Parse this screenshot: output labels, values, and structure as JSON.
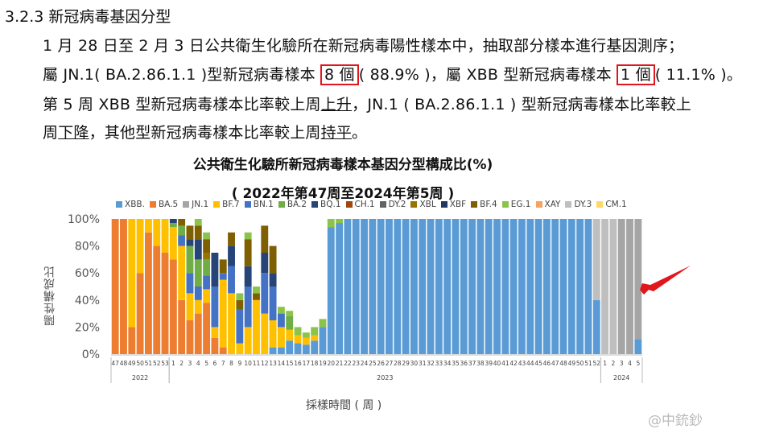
{
  "doc": {
    "heading": "3.2.3 新冠病毒基因分型",
    "line1": "1 月 28 日至 2 月 3 日公共衛生化驗所在新冠病毒陽性樣本中，抽取部分樣本進行基因測序；",
    "line2_a": "屬 JN.1( BA.2.86.1.1 )型新冠病毒樣本 ",
    "line2_b": "8 個",
    "line2_c": "( 88.9% )，屬 XBB 型新冠病毒樣本 ",
    "line2_d": "1 個",
    "line2_e": "( 11.1% )。",
    "line3_a": "第 5 周 XBB 型新冠病毒樣本比率較上周",
    "line3_b": "上升",
    "line3_c": "，JN.1 ( BA.2.86.1.1 ) 型新冠病毒樣本比率較上",
    "line4_a": "周",
    "line4_b": "下降",
    "line4_c": "，其他型新冠病毒樣本比率較上周",
    "line4_d": "持平",
    "line4_e": "。"
  },
  "chart_data": {
    "type": "bar",
    "stacked": true,
    "title": "公共衛生化驗所新冠病毒樣本基因分型構成比(%)",
    "subtitle": "( 2022年第47周至2024年第5周 )",
    "xlabel": "採樣時間 ( 周 )",
    "ylabel": "陽性構成比",
    "ylim": [
      0,
      100
    ],
    "yticks": [
      "0%",
      "20%",
      "40%",
      "60%",
      "80%",
      "100%"
    ],
    "legend_position": "top",
    "categories": [
      "47",
      "48",
      "49",
      "50",
      "51",
      "52",
      "53",
      "1",
      "2",
      "3",
      "4",
      "5",
      "6",
      "7",
      "8",
      "9",
      "10",
      "11",
      "12",
      "13",
      "14",
      "15",
      "16",
      "17",
      "18",
      "19",
      "20",
      "21",
      "22",
      "23",
      "24",
      "25",
      "26",
      "27",
      "28",
      "29",
      "30",
      "31",
      "32",
      "33",
      "34",
      "35",
      "36",
      "37",
      "38",
      "39",
      "40",
      "41",
      "42",
      "43",
      "44",
      "45",
      "46",
      "47",
      "48",
      "49",
      "50",
      "51",
      "52",
      "1",
      "2",
      "3",
      "4",
      "5"
    ],
    "year_groups": [
      {
        "label": "2022",
        "start": 0,
        "end": 6
      },
      {
        "label": "2023",
        "start": 7,
        "end": 58
      },
      {
        "label": "2024",
        "start": 59,
        "end": 63
      }
    ],
    "series": [
      {
        "name": "XBB.",
        "color": "#5b9bd5",
        "values": [
          0,
          0,
          0,
          0,
          0,
          0,
          0,
          0,
          0,
          0,
          0,
          0,
          0,
          0,
          0,
          0,
          0,
          0,
          0,
          5,
          5,
          10,
          8,
          7,
          10,
          20,
          94,
          97,
          100,
          100,
          100,
          100,
          100,
          100,
          100,
          100,
          100,
          100,
          100,
          100,
          100,
          100,
          100,
          100,
          100,
          100,
          100,
          100,
          100,
          100,
          100,
          100,
          100,
          100,
          100,
          100,
          100,
          100,
          40,
          0,
          0,
          0,
          0,
          11.1
        ]
      },
      {
        "name": "BA.5",
        "color": "#ed7d31",
        "values": [
          100,
          100,
          20,
          60,
          90,
          80,
          75,
          70,
          40,
          25,
          30,
          38,
          12,
          5,
          0,
          0,
          0,
          0,
          0,
          0,
          0,
          0,
          0,
          0,
          0,
          0,
          0,
          0,
          0,
          0,
          0,
          0,
          0,
          0,
          0,
          0,
          0,
          0,
          0,
          0,
          0,
          0,
          0,
          0,
          0,
          0,
          0,
          0,
          0,
          0,
          0,
          0,
          0,
          0,
          0,
          0,
          0,
          0,
          0,
          0,
          0,
          0,
          0,
          0
        ]
      },
      {
        "name": "JN.1",
        "color": "#a5a5a5",
        "values": [
          0,
          0,
          0,
          0,
          0,
          0,
          0,
          0,
          0,
          0,
          0,
          0,
          0,
          0,
          0,
          0,
          0,
          0,
          0,
          0,
          0,
          0,
          0,
          0,
          0,
          0,
          0,
          0,
          0,
          0,
          0,
          0,
          0,
          0,
          0,
          0,
          0,
          0,
          0,
          0,
          0,
          0,
          0,
          0,
          0,
          0,
          0,
          0,
          0,
          0,
          0,
          0,
          0,
          0,
          0,
          0,
          0,
          0,
          0,
          0,
          0,
          100,
          100,
          88.9
        ]
      },
      {
        "name": "BF.7",
        "color": "#ffc000",
        "values": [
          0,
          0,
          80,
          40,
          10,
          20,
          25,
          24,
          40,
          20,
          10,
          10,
          8,
          50,
          45,
          8,
          20,
          40,
          30,
          20,
          15,
          8,
          6,
          5,
          4,
          0,
          0,
          0,
          0,
          0,
          0,
          0,
          0,
          0,
          0,
          0,
          0,
          0,
          0,
          0,
          0,
          0,
          0,
          0,
          0,
          0,
          0,
          0,
          0,
          0,
          0,
          0,
          0,
          0,
          0,
          0,
          0,
          0,
          0,
          0,
          0,
          0,
          0,
          0
        ]
      },
      {
        "name": "BN.1",
        "color": "#4472c4",
        "values": [
          0,
          0,
          0,
          0,
          0,
          0,
          0,
          0,
          8,
          15,
          10,
          10,
          30,
          5,
          20,
          25,
          30,
          0,
          30,
          25,
          10,
          0,
          0,
          0,
          0,
          0,
          0,
          0,
          0,
          0,
          0,
          0,
          0,
          0,
          0,
          0,
          0,
          0,
          0,
          0,
          0,
          0,
          0,
          0,
          0,
          0,
          0,
          0,
          0,
          0,
          0,
          0,
          0,
          0,
          0,
          0,
          0,
          0,
          0,
          0,
          0,
          0,
          0,
          0
        ]
      },
      {
        "name": "BA.2",
        "color": "#70ad47",
        "values": [
          0,
          0,
          0,
          0,
          0,
          0,
          0,
          3,
          7,
          20,
          20,
          12,
          0,
          0,
          0,
          0,
          0,
          0,
          0,
          0,
          0,
          10,
          0,
          0,
          0,
          0,
          0,
          0,
          0,
          0,
          0,
          0,
          0,
          0,
          0,
          0,
          0,
          0,
          0,
          0,
          0,
          0,
          0,
          0,
          0,
          0,
          0,
          0,
          0,
          0,
          0,
          0,
          0,
          0,
          0,
          0,
          0,
          0,
          0,
          0,
          0,
          0,
          0,
          0
        ]
      },
      {
        "name": "BQ.1",
        "color": "#264478",
        "values": [
          0,
          0,
          0,
          0,
          0,
          0,
          0,
          3,
          0,
          5,
          15,
          0,
          25,
          0,
          15,
          0,
          15,
          0,
          15,
          10,
          0,
          0,
          0,
          0,
          0,
          0,
          0,
          0,
          0,
          0,
          0,
          0,
          0,
          0,
          0,
          0,
          0,
          0,
          0,
          0,
          0,
          0,
          0,
          0,
          0,
          0,
          0,
          0,
          0,
          0,
          0,
          0,
          0,
          0,
          0,
          0,
          0,
          0,
          0,
          0,
          0,
          0,
          0,
          0
        ]
      },
      {
        "name": "CH.1",
        "color": "#9e480e",
        "values": [
          0,
          0,
          0,
          0,
          0,
          0,
          0,
          0,
          0,
          0,
          0,
          0,
          0,
          0,
          0,
          0,
          0,
          0,
          0,
          0,
          0,
          0,
          0,
          0,
          0,
          0,
          0,
          0,
          0,
          0,
          0,
          0,
          0,
          0,
          0,
          0,
          0,
          0,
          0,
          0,
          0,
          0,
          0,
          0,
          0,
          0,
          0,
          0,
          0,
          0,
          0,
          0,
          0,
          0,
          0,
          0,
          0,
          0,
          0,
          0,
          0,
          0,
          0,
          0
        ]
      },
      {
        "name": "DY.2",
        "color": "#636363",
        "values": [
          0,
          0,
          0,
          0,
          0,
          0,
          0,
          0,
          0,
          0,
          0,
          0,
          0,
          0,
          0,
          0,
          0,
          0,
          0,
          0,
          0,
          0,
          0,
          0,
          0,
          0,
          0,
          0,
          0,
          0,
          0,
          0,
          0,
          0,
          0,
          0,
          0,
          0,
          0,
          0,
          0,
          0,
          0,
          0,
          0,
          0,
          0,
          0,
          0,
          0,
          0,
          0,
          0,
          0,
          0,
          0,
          0,
          0,
          0,
          0,
          0,
          0,
          0,
          0
        ]
      },
      {
        "name": "XBL",
        "color": "#997300",
        "values": [
          0,
          0,
          0,
          0,
          0,
          0,
          0,
          0,
          0,
          0,
          0,
          5,
          0,
          0,
          0,
          0,
          0,
          0,
          0,
          0,
          0,
          0,
          0,
          0,
          0,
          0,
          0,
          0,
          0,
          0,
          0,
          0,
          0,
          0,
          0,
          0,
          0,
          0,
          0,
          0,
          0,
          0,
          0,
          0,
          0,
          0,
          0,
          0,
          0,
          0,
          0,
          0,
          0,
          0,
          0,
          0,
          0,
          0,
          0,
          0,
          0,
          0,
          0,
          0
        ]
      },
      {
        "name": "XBF",
        "color": "#203864",
        "values": [
          0,
          0,
          0,
          0,
          0,
          0,
          0,
          0,
          0,
          0,
          0,
          0,
          0,
          0,
          0,
          0,
          0,
          0,
          0,
          0,
          0,
          0,
          0,
          0,
          0,
          0,
          0,
          0,
          0,
          0,
          0,
          0,
          0,
          0,
          0,
          0,
          0,
          0,
          0,
          0,
          0,
          0,
          0,
          0,
          0,
          0,
          0,
          0,
          0,
          0,
          0,
          0,
          0,
          0,
          0,
          0,
          0,
          0,
          0,
          0,
          0,
          0,
          0,
          0
        ]
      },
      {
        "name": "BF.4",
        "color": "#7f6000",
        "values": [
          0,
          0,
          0,
          0,
          0,
          0,
          0,
          0,
          5,
          10,
          10,
          10,
          0,
          10,
          10,
          7,
          20,
          5,
          20,
          20,
          0,
          0,
          0,
          0,
          0,
          0,
          0,
          0,
          0,
          0,
          0,
          0,
          0,
          0,
          0,
          0,
          0,
          0,
          0,
          0,
          0,
          0,
          0,
          0,
          0,
          0,
          0,
          0,
          0,
          0,
          0,
          0,
          0,
          0,
          0,
          0,
          0,
          0,
          0,
          0,
          0,
          0,
          0,
          0
        ]
      },
      {
        "name": "EG.1",
        "color": "#8cc34a",
        "values": [
          0,
          0,
          0,
          0,
          0,
          0,
          0,
          0,
          0,
          0,
          5,
          5,
          0,
          0,
          0,
          5,
          5,
          5,
          0,
          0,
          5,
          4,
          6,
          4,
          6,
          6,
          6,
          3,
          0,
          0,
          0,
          0,
          0,
          0,
          0,
          0,
          0,
          0,
          0,
          0,
          0,
          0,
          0,
          0,
          0,
          0,
          0,
          0,
          0,
          0,
          0,
          0,
          0,
          0,
          0,
          0,
          0,
          0,
          0,
          0,
          0,
          0,
          0,
          0
        ]
      },
      {
        "name": "XAY",
        "color": "#f4a460",
        "values": [
          0,
          0,
          0,
          0,
          0,
          0,
          0,
          0,
          0,
          0,
          0,
          0,
          0,
          0,
          0,
          0,
          0,
          0,
          0,
          0,
          0,
          0,
          0,
          0,
          0,
          0,
          0,
          0,
          0,
          0,
          0,
          0,
          0,
          0,
          0,
          0,
          0,
          0,
          0,
          0,
          0,
          0,
          0,
          0,
          0,
          0,
          0,
          0,
          0,
          0,
          0,
          0,
          0,
          0,
          0,
          0,
          0,
          0,
          0,
          0,
          0,
          0,
          0,
          0
        ]
      },
      {
        "name": "DY.3",
        "color": "#bfbfbf",
        "values": [
          0,
          0,
          0,
          0,
          0,
          0,
          0,
          0,
          0,
          0,
          0,
          0,
          0,
          0,
          0,
          0,
          0,
          0,
          0,
          0,
          0,
          0,
          0,
          0,
          0,
          0,
          0,
          0,
          0,
          0,
          0,
          0,
          0,
          0,
          0,
          0,
          0,
          0,
          0,
          0,
          0,
          0,
          0,
          0,
          0,
          0,
          0,
          0,
          0,
          0,
          0,
          0,
          0,
          0,
          0,
          0,
          0,
          0,
          60,
          100,
          100,
          0,
          0,
          0
        ]
      },
      {
        "name": "CM.1",
        "color": "#ffd966",
        "values": [
          0,
          0,
          0,
          0,
          0,
          0,
          0,
          0,
          0,
          0,
          0,
          0,
          0,
          0,
          0,
          0,
          0,
          0,
          0,
          0,
          0,
          0,
          0,
          0,
          0,
          0,
          0,
          0,
          0,
          0,
          0,
          0,
          0,
          0,
          0,
          0,
          0,
          0,
          0,
          0,
          0,
          0,
          0,
          0,
          0,
          0,
          0,
          0,
          0,
          0,
          0,
          0,
          0,
          0,
          0,
          0,
          0,
          0,
          0,
          0,
          0,
          0,
          0,
          0
        ]
      }
    ]
  },
  "watermark": "@中銃鈔"
}
